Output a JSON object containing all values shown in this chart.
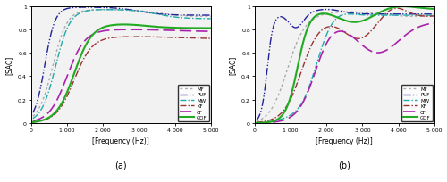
{
  "title_a": "(a)",
  "title_b": "(b)",
  "xlabel": "[Frequency (Hz)]",
  "ylabel": "[SAC]",
  "xlim": [
    0,
    5000
  ],
  "ylim": [
    0,
    1.0
  ],
  "xticks": [
    0,
    1000,
    2000,
    3000,
    4000,
    5000
  ],
  "yticks": [
    0,
    0.2,
    0.4,
    0.6,
    0.8,
    1.0
  ],
  "legend_labels": [
    "MF",
    "PUF",
    "MW",
    "KF",
    "CF",
    "GOF"
  ],
  "colors": {
    "MF": "#aaaaaa",
    "PUF": "#222299",
    "MW": "#22aaaa",
    "KF": "#993333",
    "CF": "#aa22aa",
    "GOF": "#22aa22"
  },
  "linewidths": {
    "MF": 1.0,
    "PUF": 1.0,
    "MW": 1.0,
    "KF": 1.0,
    "CF": 1.2,
    "GOF": 1.5
  },
  "background": "#f0f0f0"
}
